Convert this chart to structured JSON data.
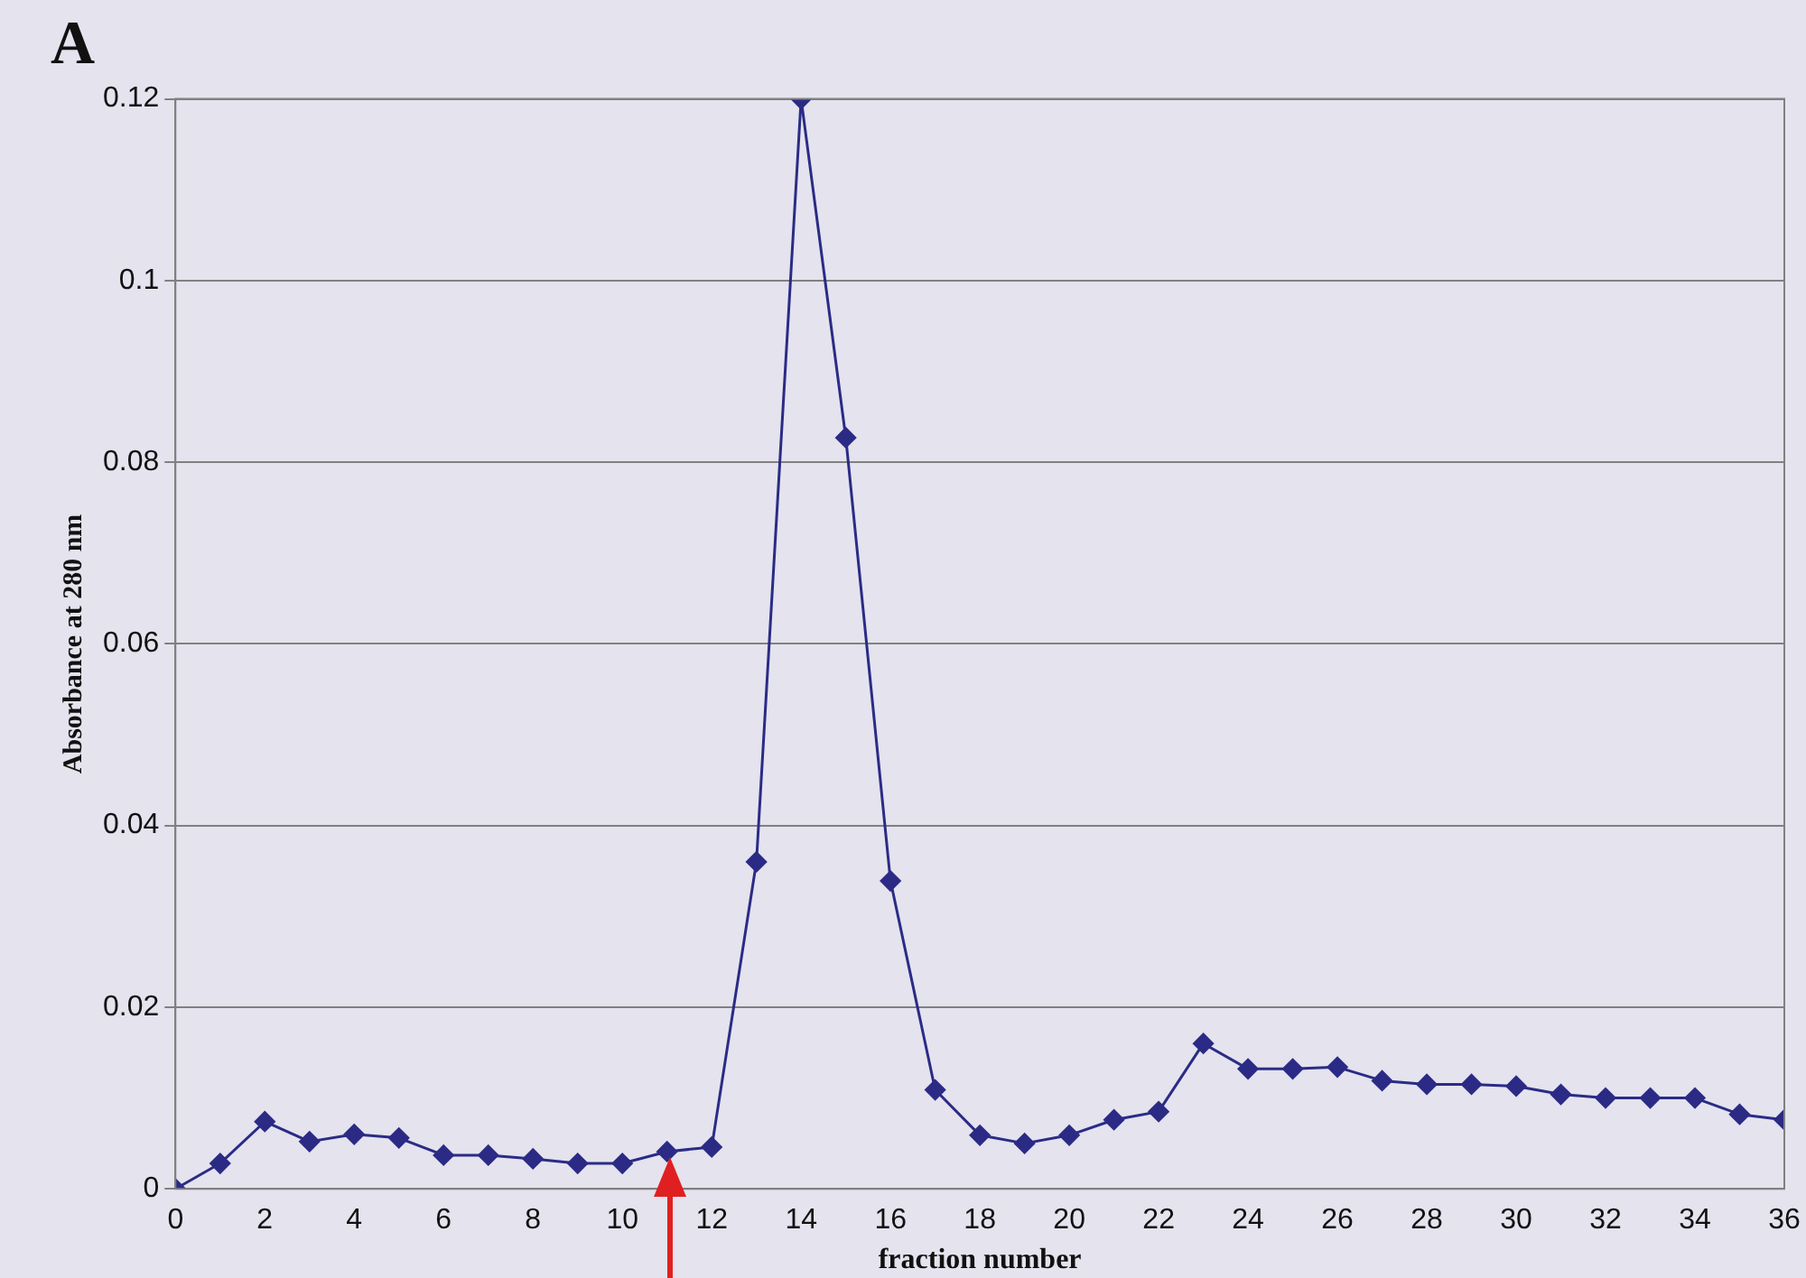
{
  "chart_data": {
    "type": "line",
    "title": "A",
    "xlabel": "fraction number",
    "ylabel": "Absorbance at 280 nm",
    "x": [
      0,
      1,
      2,
      3,
      4,
      5,
      6,
      7,
      8,
      9,
      10,
      11,
      12,
      13,
      14,
      15,
      16,
      17,
      18,
      19,
      20,
      21,
      22,
      23,
      24,
      25,
      26,
      27,
      28,
      29,
      30,
      31,
      32,
      33,
      34,
      35,
      36
    ],
    "series": [
      {
        "color": "#2b2b86",
        "values": [
          0,
          0.0028,
          0.0074,
          0.0052,
          0.006,
          0.0056,
          0.0037,
          0.0037,
          0.0033,
          0.0028,
          0.0028,
          0.0041,
          0.0046,
          0.036,
          0.12,
          0.0827,
          0.0339,
          0.0109,
          0.0059,
          0.005,
          0.0059,
          0.0076,
          0.0085,
          0.016,
          0.0132,
          0.0132,
          0.0134,
          0.0119,
          0.0115,
          0.0115,
          0.0113,
          0.0104,
          0.01,
          0.01,
          0.01,
          0.0082,
          0.0076
        ]
      }
    ],
    "xlim": [
      0,
      36
    ],
    "xticks": [
      0,
      2,
      4,
      6,
      8,
      10,
      12,
      14,
      16,
      18,
      20,
      22,
      24,
      26,
      28,
      30,
      32,
      34,
      36
    ],
    "ylim": [
      0,
      0.12
    ],
    "yticks": [
      0,
      0.02,
      0.04,
      0.06,
      0.08,
      0.1,
      0.12
    ],
    "grid": "y",
    "legend": false,
    "marker": "diamond",
    "line_style": "solid"
  }
}
